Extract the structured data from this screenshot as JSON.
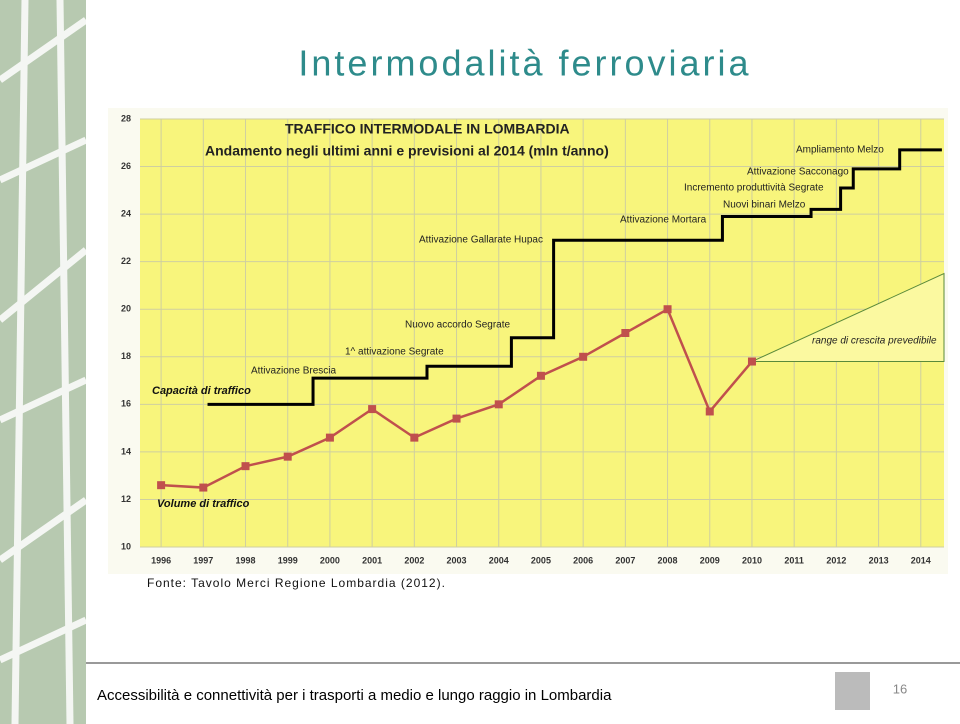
{
  "slide_title": "Intermodalità ferroviaria",
  "source": "Fonte: Tavolo Merci Regione Lombardia (2012).",
  "footer": "Accessibilità e connettività per i trasporti a medio e lungo raggio in Lombardia",
  "page_number": "16",
  "chart_data": {
    "type": "line",
    "title": "TRAFFICO INTERMODALE IN LOMBARDIA",
    "subtitle": "Andamento negli ultimi anni e previsioni al 2014 (mln t/anno)",
    "x": [
      1996,
      1997,
      1998,
      1999,
      2000,
      2001,
      2002,
      2003,
      2004,
      2005,
      2006,
      2007,
      2008,
      2009,
      2010,
      2011,
      2012,
      2013,
      2014
    ],
    "xlim": [
      1995.5,
      2014.55
    ],
    "xticks": [
      1996,
      1997,
      1998,
      1999,
      2000,
      2001,
      2002,
      2003,
      2004,
      2005,
      2006,
      2007,
      2008,
      2009,
      2010,
      2011,
      2012,
      2013,
      2014
    ],
    "ylim": [
      10,
      28
    ],
    "yticks": [
      10,
      12,
      14,
      16,
      18,
      20,
      22,
      24,
      26,
      28
    ],
    "grid": true,
    "series": [
      {
        "name": "Volume di traffico",
        "color": "#c0504d",
        "values": [
          12.6,
          12.5,
          13.4,
          13.8,
          14.6,
          15.8,
          14.6,
          15.4,
          16.0,
          17.2,
          18.0,
          19.0,
          20.0,
          15.7,
          17.8,
          null,
          null,
          null,
          null
        ]
      },
      {
        "name": "Capacità di traffico",
        "color": "#000000",
        "step": "post",
        "x": [
          1997.1,
          1999.6,
          2002.3,
          2004.3,
          2005.3,
          2009.3,
          2011.4,
          2012.1,
          2012.4,
          2013.5,
          2014.5
        ],
        "values": [
          16.0,
          17.1,
          17.6,
          18.8,
          22.9,
          23.9,
          24.2,
          25.1,
          25.9,
          26.7,
          26.7
        ]
      }
    ],
    "annotations": [
      "Attivazione Brescia",
      "1^ attivazione Segrate",
      "Nuovo accordo Segrate",
      "Attivazione Gallarate Hupac",
      "Attivazione Mortara",
      "Nuovi binari Melzo",
      "Incremento produttività Segrate",
      "Attivazione Sacconago",
      "Ampliamento Melzo",
      "range di crescita prevedibile"
    ]
  }
}
